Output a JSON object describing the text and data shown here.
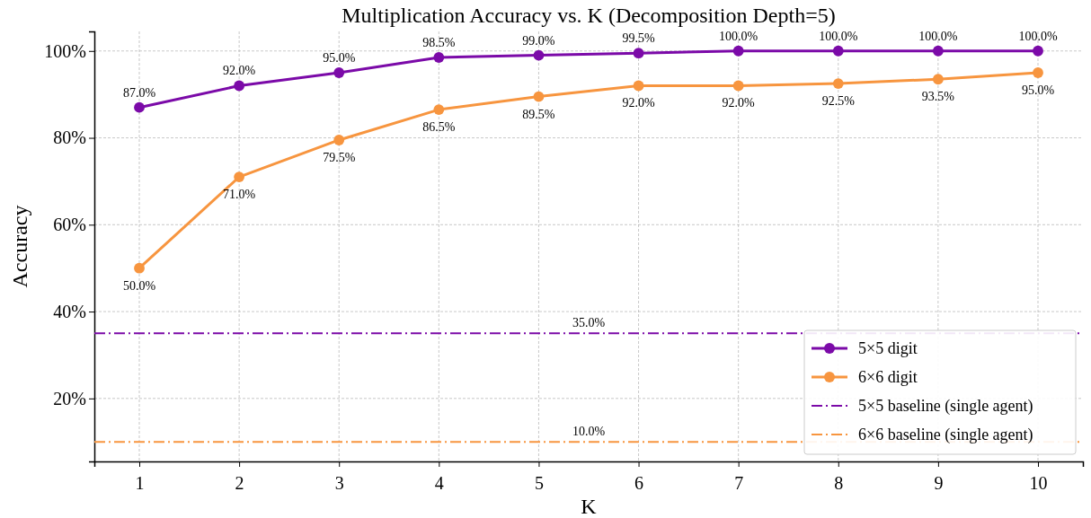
{
  "chart_data": {
    "type": "line",
    "title": "Multiplication Accuracy vs. K (Decomposition Depth=5)",
    "xlabel": "K",
    "ylabel": "Accuracy",
    "x": [
      1,
      2,
      3,
      4,
      5,
      6,
      7,
      8,
      9,
      10
    ],
    "xlim": [
      0.55,
      10.45
    ],
    "xticks": [
      1,
      2,
      3,
      4,
      5,
      6,
      7,
      8,
      9,
      10
    ],
    "ylim": [
      5.5,
      104.5
    ],
    "yticks": [
      {
        "value": 20,
        "label": "20%"
      },
      {
        "value": 40,
        "label": "40%"
      },
      {
        "value": 60,
        "label": "60%"
      },
      {
        "value": 80,
        "label": "80%"
      },
      {
        "value": 100,
        "label": "100%"
      }
    ],
    "grid": true,
    "legend": "bottom right",
    "marker": "circle",
    "line_style": "solid",
    "series": [
      {
        "name": "5×5 digit",
        "color": "#7b0aa8",
        "values": [
          87,
          92,
          95,
          98.5,
          99,
          99.5,
          100,
          100,
          100,
          100
        ],
        "value_labels": [
          "87.0%",
          "92.0%",
          "95.0%",
          "98.5%",
          "99.0%",
          "99.5%",
          "100.0%",
          "100.0%",
          "100.0%",
          "100.0%"
        ]
      },
      {
        "name": "6×6 digit",
        "color": "#f7953f",
        "values": [
          50,
          71,
          79.5,
          86.5,
          89.5,
          92,
          92,
          92.5,
          93.5,
          95
        ],
        "value_labels": [
          "50.0%",
          "71.0%",
          "79.5%",
          "86.5%",
          "89.5%",
          "92.0%",
          "92.0%",
          "92.5%",
          "93.5%",
          "95.0%"
        ]
      }
    ],
    "ref_lines": [
      {
        "axis": "y",
        "value": 35,
        "label": "5×5 baseline (single agent)",
        "color": "#7b0aa8",
        "line_style": "dashed"
      },
      {
        "axis": "y",
        "value": 10,
        "label": "6×6 baseline (single agent)",
        "color": "#f7953f",
        "line_style": "dashed"
      }
    ],
    "annotations": [
      {
        "text": "35.0%",
        "x": 5.5,
        "y": 35
      },
      {
        "text": "10.0%",
        "x": 5.5,
        "y": 10
      }
    ]
  }
}
